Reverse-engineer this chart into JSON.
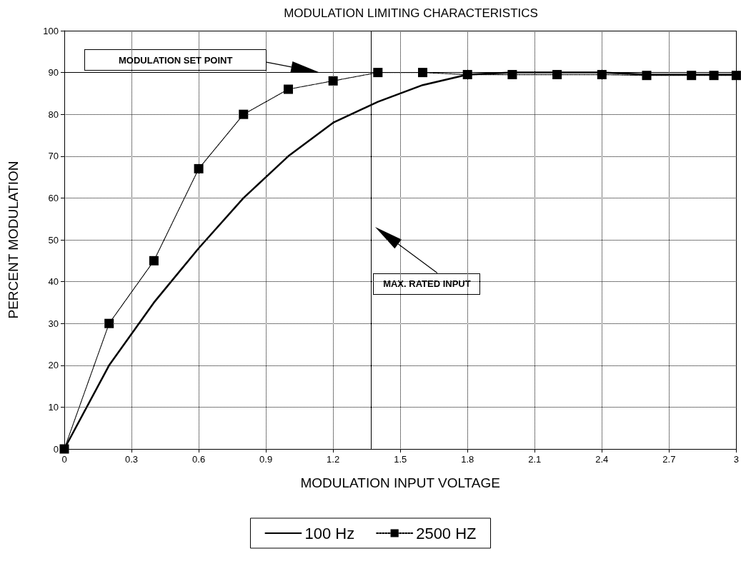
{
  "chart_data": {
    "type": "line",
    "title": "MODULATION LIMITING CHARACTERISTICS",
    "xlabel": "MODULATION INPUT VOLTAGE",
    "ylabel": "PERCENT MODULATION",
    "x": [
      0,
      0.2,
      0.4,
      0.6,
      0.8,
      1.0,
      1.2,
      1.4,
      1.6,
      1.8,
      2.0,
      2.2,
      2.4,
      2.6,
      2.8,
      2.9,
      3.0
    ],
    "series": [
      {
        "name": "100 Hz",
        "color": "#000000",
        "marker": "none",
        "line_style": "solid",
        "values": [
          0,
          20,
          35,
          48,
          60,
          70,
          78,
          83,
          87,
          89.5,
          90,
          90,
          90,
          89.5,
          89.5,
          89.5,
          89.5
        ]
      },
      {
        "name": "2500 HZ",
        "color": "#000000",
        "marker": "square",
        "line_style": "dotted",
        "values": [
          0,
          30,
          45,
          67,
          80,
          86,
          88,
          90,
          90,
          89.5,
          89.5,
          89.5,
          89.5,
          89.3,
          89.3,
          89.3,
          89.3
        ]
      }
    ],
    "xlim": [
      0,
      3
    ],
    "xticks": [
      0,
      0.3,
      0.6,
      0.9,
      1.2,
      1.5,
      1.8,
      2.1,
      2.4,
      2.7,
      3
    ],
    "ylim": [
      0,
      100
    ],
    "yticks": [
      0,
      10,
      20,
      30,
      40,
      50,
      60,
      70,
      80,
      90,
      100
    ],
    "ref_lines": [
      {
        "axis": "y",
        "value": 90,
        "label": "MODULATION SET POINT"
      },
      {
        "axis": "x",
        "value": 1.37,
        "label": "MAX. RATED INPUT"
      }
    ],
    "grid": true,
    "legend": "bottom"
  }
}
